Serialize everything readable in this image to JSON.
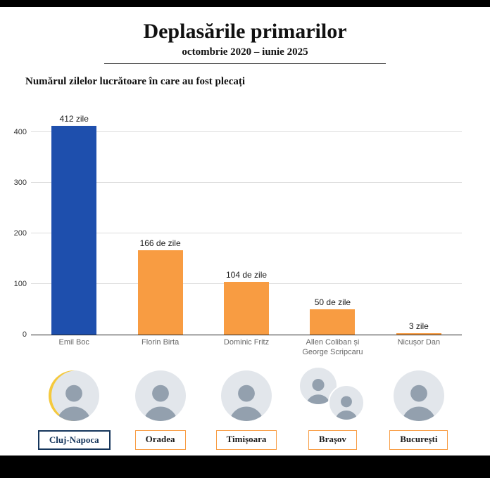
{
  "page": {
    "title": "Deplasările primarilor",
    "subtitle": "octombrie 2020 – iunie 2025",
    "heading": "Numărul zilelor lucrătoare în care au fost plecați"
  },
  "colors": {
    "bar_blue": "#1e4fad",
    "bar_orange": "#f89c42",
    "navy": "#16365c"
  },
  "chart_data": {
    "type": "bar",
    "title": "Deplasările primarilor",
    "subtitle": "octombrie 2020 – iunie 2025",
    "xlabel": "",
    "ylabel": "",
    "ylim": [
      0,
      420
    ],
    "yticks": [
      0,
      100,
      200,
      300,
      400
    ],
    "grid": "horizontal",
    "legend": "none",
    "categories": [
      "Emil Boc",
      "Florin Birta",
      "Dominic Fritz",
      "Allen Coliban și George Scripcaru",
      "Nicușor Dan"
    ],
    "values": [
      412,
      166,
      104,
      50,
      3
    ],
    "value_labels": [
      "412 zile",
      "166 de zile",
      "104 de zile",
      "50 de zile",
      "3 zile"
    ],
    "bar_colors": [
      "#1e4fad",
      "#f89c42",
      "#f89c42",
      "#f89c42",
      "#f89c42"
    ],
    "cities": [
      "Cluj-Napoca",
      "Oradea",
      "Timișoara",
      "Brașov",
      "București"
    ]
  },
  "photo_counts": [
    1,
    1,
    1,
    2,
    1
  ],
  "photo_accents": [
    true,
    false,
    false,
    false,
    false
  ],
  "city_border_colors": [
    "#16365c",
    "#f89c42",
    "#f89c42",
    "#f89c42",
    "#f89c42"
  ],
  "city_text_colors": [
    "#16365c",
    "#1a1a1a",
    "#1a1a1a",
    "#1a1a1a",
    "#1a1a1a"
  ],
  "city_border_widths": [
    "2px",
    "1.5px",
    "1.5px",
    "1.5px",
    "1.5px"
  ]
}
